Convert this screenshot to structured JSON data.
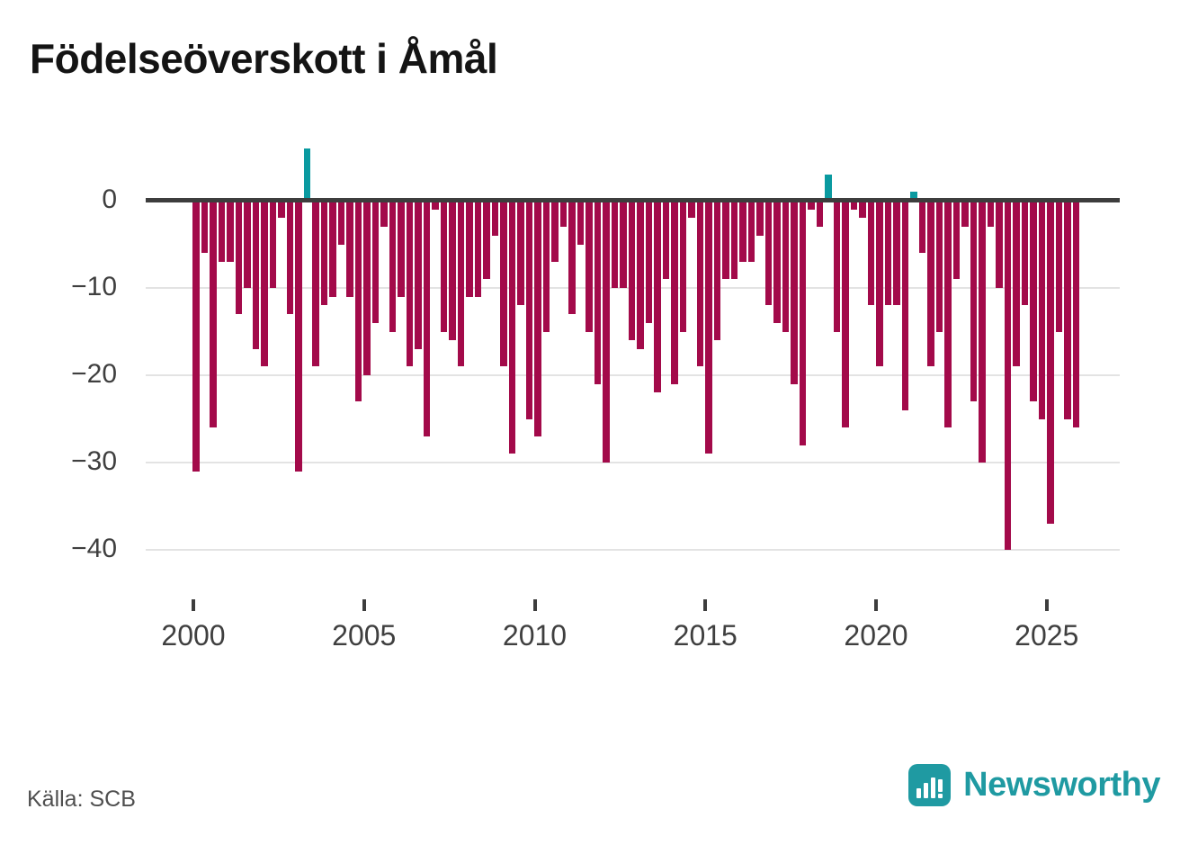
{
  "title": "Födelseöverskott i Åmål",
  "source_label": "Källa: SCB",
  "brand": {
    "name": "Newsworthy",
    "color": "#1f9aa2"
  },
  "colors": {
    "negative_bar": "#a30a4a",
    "positive_bar": "#0a9aa0",
    "zero_line": "#3d3d3d",
    "gridline": "#e3e3e3",
    "axis_text": "#3f3f3f"
  },
  "chart_data": {
    "type": "bar",
    "title": "Födelseöverskott i Åmål",
    "xlabel": "",
    "ylabel": "",
    "frequency": "quarterly",
    "period_start_year": 2000,
    "periods_per_year": 4,
    "values": [
      -31,
      -6,
      -26,
      -7,
      -7,
      -13,
      -10,
      -17,
      -19,
      -10,
      -2,
      -13,
      -31,
      6,
      -19,
      -12,
      -11,
      -5,
      -11,
      -23,
      -20,
      -14,
      -3,
      -15,
      -11,
      -19,
      -17,
      -27,
      -1,
      -15,
      -16,
      -19,
      -11,
      -11,
      -9,
      -4,
      -19,
      -29,
      -12,
      -25,
      -27,
      -15,
      -7,
      -3,
      -13,
      -5,
      -15,
      -21,
      -30,
      -10,
      -10,
      -16,
      -17,
      -14,
      -22,
      -9,
      -21,
      -15,
      -2,
      -19,
      -29,
      -16,
      -9,
      -9,
      -7,
      -7,
      -4,
      -12,
      -14,
      -15,
      -21,
      -28,
      -1,
      -3,
      3,
      -15,
      -26,
      -1,
      -2,
      -12,
      -19,
      -12,
      -12,
      -24,
      1,
      -6,
      -19,
      -15,
      -26,
      -9,
      -3,
      -23,
      -30,
      -3,
      -10,
      -40,
      -19,
      -12,
      -23,
      -25,
      -37,
      -15,
      -25,
      -26
    ],
    "yticks": [
      0,
      -10,
      -20,
      -30,
      -40
    ],
    "ytick_labels": [
      "0",
      "−10",
      "−20",
      "−30",
      "−40"
    ],
    "xticks": [
      2000,
      2005,
      2010,
      2015,
      2020,
      2025
    ],
    "ylim": [
      -42,
      7
    ],
    "grid": "horizontal",
    "legend": "none"
  }
}
